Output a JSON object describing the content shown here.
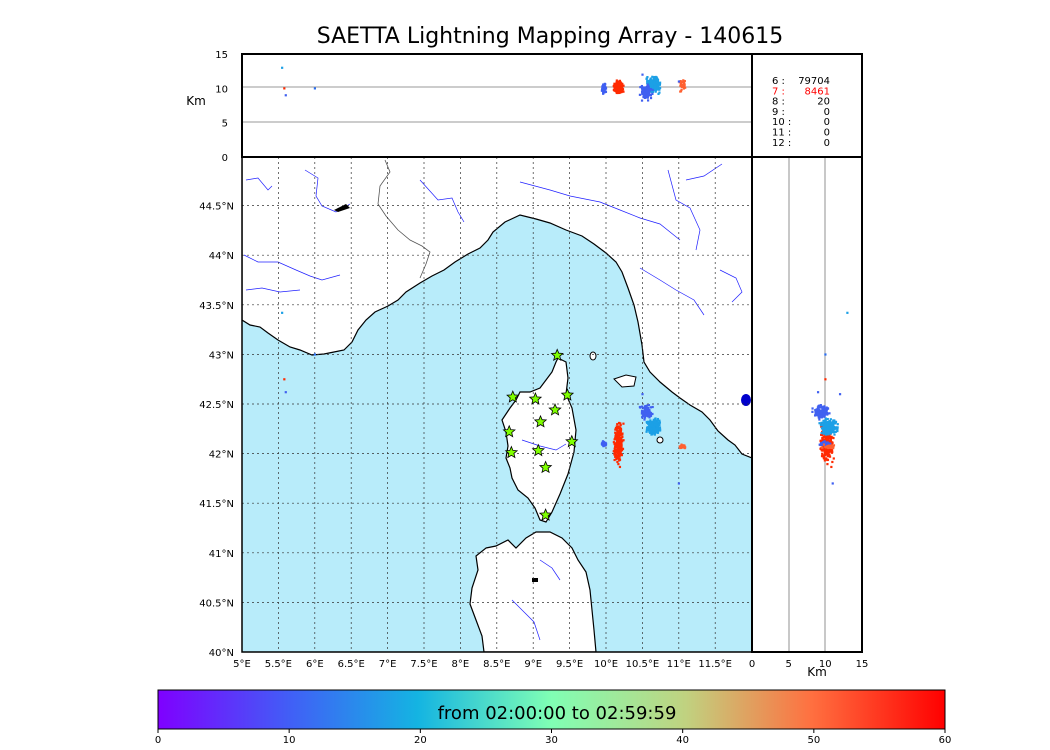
{
  "chart_data": {
    "type": "scatter",
    "title": "SAETTA Lightning Mapping Array - 140615",
    "map": {
      "xlim": [
        5,
        12
      ],
      "ylim": [
        40,
        45
      ],
      "x_ticks": [
        "5°E",
        "5.5°E",
        "6°E",
        "6.5°E",
        "7°E",
        "7.5°E",
        "8°E",
        "8.5°E",
        "9°E",
        "9.5°E",
        "10°E",
        "10.5°E",
        "11°E",
        "11.5°E"
      ],
      "y_ticks": [
        "40°N",
        "40.5°N",
        "41°N",
        "41.5°N",
        "42°N",
        "42.5°N",
        "43°N",
        "43.5°N",
        "44°N",
        "44.5°N"
      ],
      "grid": true
    },
    "altitude_panel": {
      "ylabel": "Km",
      "ylim": [
        0,
        15
      ],
      "y_ticks": [
        "0",
        "5",
        "10",
        "15"
      ]
    },
    "side_panel": {
      "xlabel": "Km",
      "xlim": [
        0,
        15
      ],
      "x_ticks": [
        "0",
        "5",
        "10",
        "15"
      ]
    },
    "station_counts": [
      {
        "stations": "6",
        "count": "79704",
        "color": "#000000"
      },
      {
        "stations": "7",
        "count": "8461",
        "color": "#ff0000"
      },
      {
        "stations": "8",
        "count": "20",
        "color": "#000000"
      },
      {
        "stations": "9",
        "count": "0",
        "color": "#000000"
      },
      {
        "stations": "10",
        "count": "0",
        "color": "#000000"
      },
      {
        "stations": "11",
        "count": "0",
        "color": "#000000"
      },
      {
        "stations": "12",
        "count": "0",
        "color": "#000000"
      }
    ],
    "stations": [
      [
        9.33,
        42.99
      ],
      [
        8.72,
        42.57
      ],
      [
        9.03,
        42.55
      ],
      [
        9.47,
        42.59
      ],
      [
        9.3,
        42.44
      ],
      [
        9.1,
        42.32
      ],
      [
        8.67,
        42.22
      ],
      [
        9.53,
        42.12
      ],
      [
        8.7,
        42.01
      ],
      [
        9.07,
        42.03
      ],
      [
        9.17,
        41.86
      ],
      [
        9.17,
        41.38
      ]
    ],
    "lightning_clusters": [
      {
        "lon": 10.17,
        "lat": 42.1,
        "alt": 10.2,
        "time_min": 55,
        "color": "#ff2a00"
      },
      {
        "lon": 10.65,
        "lat": 42.27,
        "alt": 10.5,
        "time_min": 17,
        "color": "#1ca0e6"
      },
      {
        "lon": 10.55,
        "lat": 42.42,
        "alt": 9.5,
        "time_min": 8,
        "color": "#4060f0"
      },
      {
        "lon": 9.97,
        "lat": 42.1,
        "alt": 10.0,
        "time_min": 8,
        "color": "#3f5ff2"
      },
      {
        "lon": 11.05,
        "lat": 42.07,
        "alt": 10.5,
        "time_min": 50,
        "color": "#ff6030"
      }
    ],
    "colorbar": {
      "label": "from 02:00:00 to 02:59:59",
      "range": [
        0,
        60
      ],
      "ticks": [
        "0",
        "10",
        "20",
        "30",
        "40",
        "50",
        "60"
      ],
      "colormap": "rainbow"
    }
  }
}
